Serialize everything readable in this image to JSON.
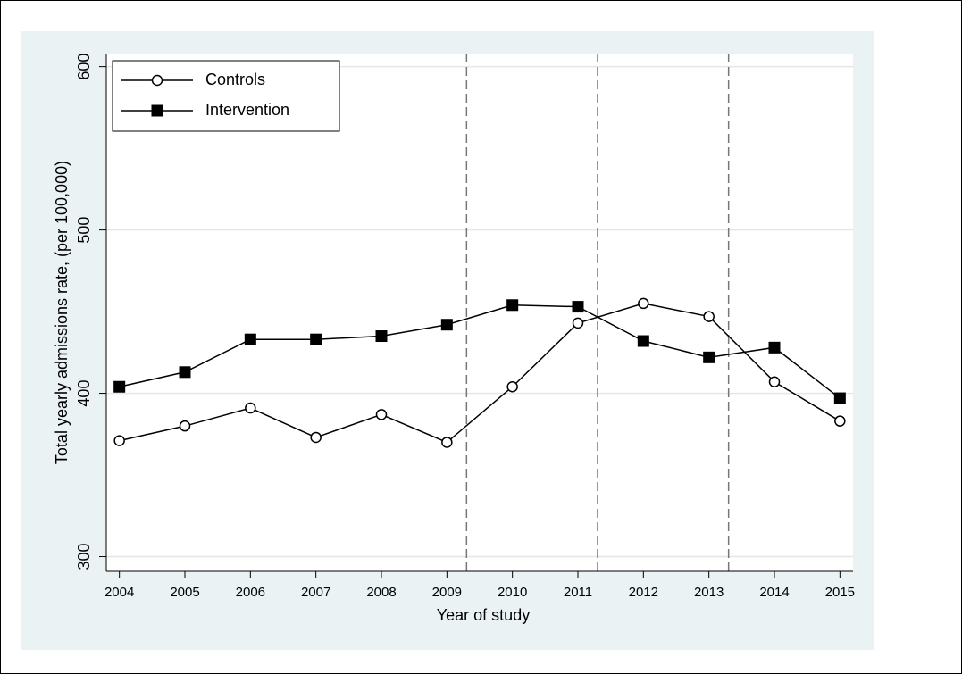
{
  "chart_data": {
    "type": "line",
    "x_label": "Year of study",
    "y_label": "Total yearly admissions rate, (per 100,000)",
    "x": [
      2004,
      2005,
      2006,
      2007,
      2008,
      2009,
      2010,
      2011,
      2012,
      2013,
      2014,
      2015
    ],
    "series": [
      {
        "name": "Controls",
        "color": "#000000",
        "marker": "circle",
        "values": [
          371,
          380,
          391,
          373,
          387,
          370,
          404,
          443,
          455,
          447,
          407,
          383
        ]
      },
      {
        "name": "Intervention",
        "color": "#000000",
        "marker": "square",
        "values": [
          404,
          413,
          433,
          433,
          435,
          442,
          454,
          453,
          432,
          422,
          428,
          397
        ]
      }
    ],
    "xlim": [
      2003.8,
      2015.2
    ],
    "ylim": [
      291,
      608
    ],
    "xticks": [
      2004,
      2005,
      2006,
      2007,
      2008,
      2009,
      2010,
      2011,
      2012,
      2013,
      2014,
      2015
    ],
    "yticks": [
      300,
      400,
      500,
      600
    ],
    "vlines": [
      2009.3,
      2011.3,
      2013.3
    ],
    "grid": true,
    "legend": "top-left"
  }
}
